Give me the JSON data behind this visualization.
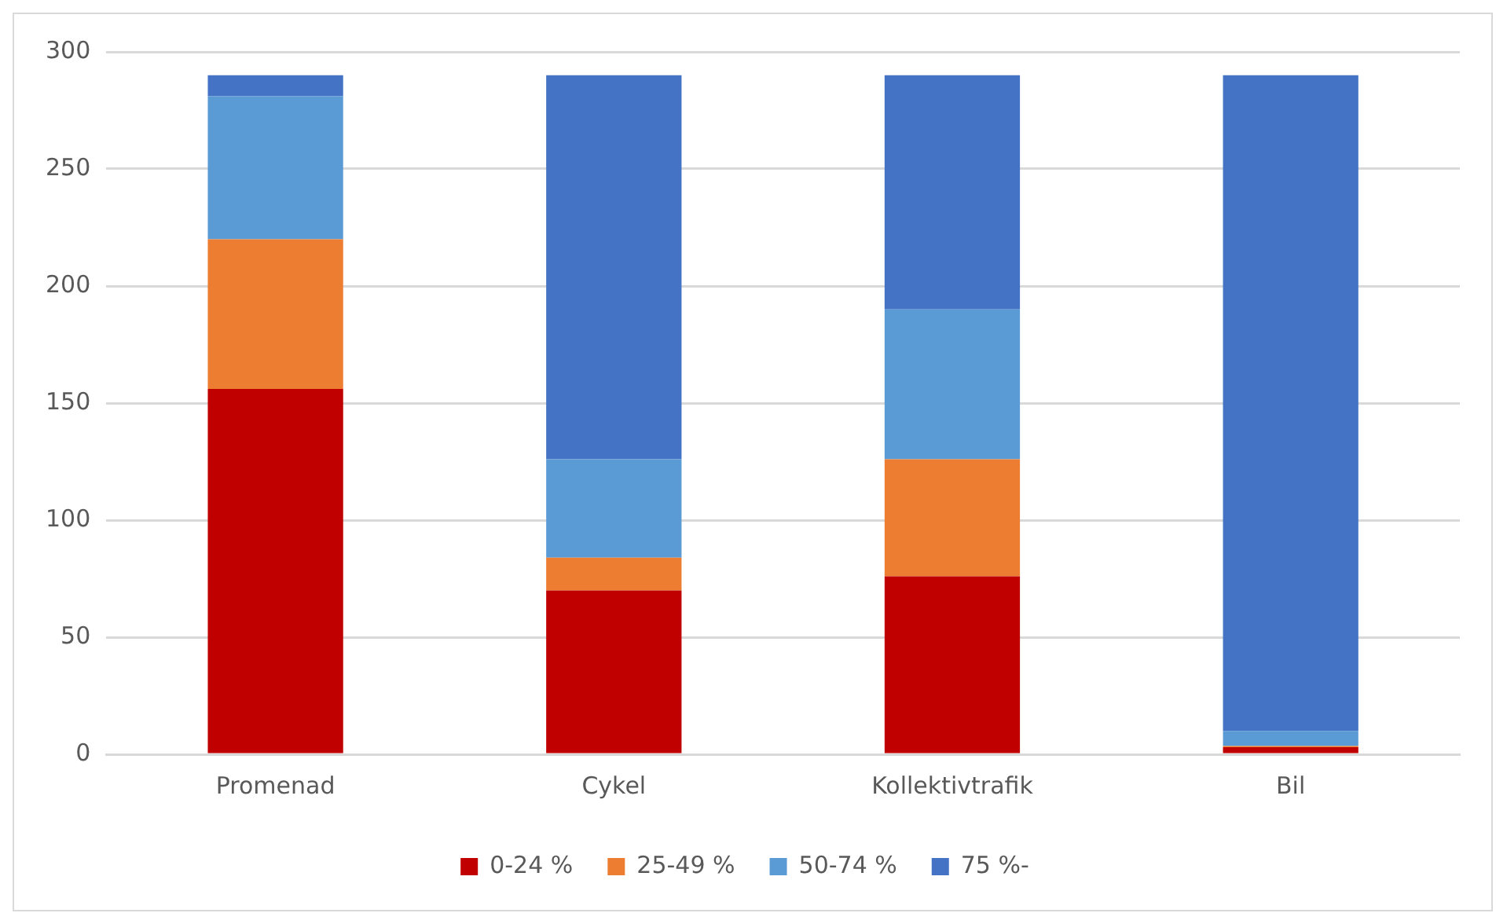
{
  "chart_data": {
    "type": "bar",
    "stacked": true,
    "categories": [
      "Promenad",
      "Cykel",
      "Kollektivtrafik",
      "Bil"
    ],
    "series": [
      {
        "name": "0-24 %",
        "color": "#c00000",
        "values": [
          156,
          70,
          76,
          3
        ]
      },
      {
        "name": "25-49 %",
        "color": "#ed7d31",
        "values": [
          64,
          14,
          50,
          0.5
        ]
      },
      {
        "name": "50-74 %",
        "color": "#5b9bd5",
        "values": [
          61,
          42,
          64,
          6.5
        ]
      },
      {
        "name": "75 %-",
        "color": "#4472c4",
        "values": [
          9,
          164,
          100,
          280
        ]
      }
    ],
    "ylim": [
      0,
      300
    ],
    "yticks": [
      0,
      50,
      100,
      150,
      200,
      250,
      300
    ],
    "grid": "y",
    "legend": "bottom"
  }
}
